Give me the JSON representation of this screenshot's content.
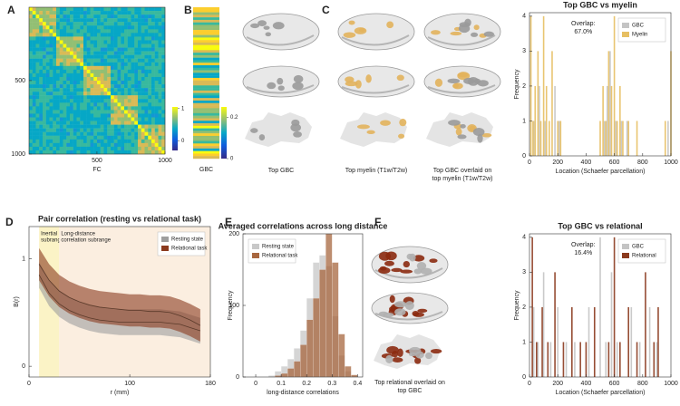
{
  "panel_labels": [
    "A",
    "B",
    "C",
    "D",
    "E",
    "F"
  ],
  "brains": {
    "labels": [
      [
        "Top GBC"
      ],
      [
        "Top myelin (T1w/T2w)"
      ],
      [
        "Top GBC overlaid on",
        "top myelin (T1w/T2w)"
      ],
      [
        "Top relational overlaid on",
        "top GBC"
      ]
    ]
  },
  "chart_data": [
    {
      "type": "heatmap",
      "xlabel": "FC",
      "xlim": [
        1,
        1000
      ],
      "ylim": [
        1,
        1000
      ],
      "xticks": [
        500,
        1000
      ],
      "yticks": [
        500,
        1000
      ],
      "colorbar_lim": [
        -0.3,
        1.05
      ],
      "colorbar_ticks": [
        0,
        1
      ]
    },
    {
      "type": "colorbar",
      "xlabel": "GBC",
      "colorbar_lim": [
        0,
        0.25
      ],
      "colorbar_ticks": [
        0,
        0.2
      ]
    },
    {
      "type": "bar",
      "title": "Top GBC vs myelin",
      "xlabel": "Location (Schaefer parcellation)",
      "ylabel": "Frequency",
      "xlim": [
        0,
        1000
      ],
      "ylim": [
        0,
        4.1
      ],
      "xticks": [
        0,
        200,
        400,
        600,
        800,
        1000
      ],
      "yticks": [
        0,
        1,
        2,
        3,
        4
      ],
      "legend": "upper right",
      "annotation_lines": [
        "Overlap:",
        "67.0%"
      ],
      "series": [
        {
          "name": "GBC",
          "color": "#c4c4c4",
          "x": [
            30,
            70,
            110,
            180,
            210,
            530,
            550,
            570,
            610,
            650,
            690,
            980
          ],
          "values": [
            1,
            2,
            1,
            2,
            1,
            1,
            2,
            3,
            1,
            1,
            1,
            1
          ]
        },
        {
          "name": "Myelin",
          "color": "#e7bf62",
          "x": [
            10,
            25,
            40,
            60,
            80,
            100,
            120,
            140,
            160,
            200,
            220,
            500,
            520,
            540,
            560,
            580,
            600,
            620,
            640,
            660,
            700,
            760,
            960,
            1000
          ],
          "values": [
            4,
            1,
            2,
            3,
            1,
            4,
            2,
            1,
            3,
            1,
            1,
            1,
            2,
            1,
            3,
            2,
            4,
            1,
            2,
            1,
            1,
            1,
            1,
            3
          ]
        }
      ]
    },
    {
      "type": "line",
      "title": "Pair correlation (resting vs relational task)",
      "xlabel": "r (mm)",
      "ylabel": "B(r)",
      "xlim": [
        0,
        180
      ],
      "ylim": [
        -0.1,
        1.3
      ],
      "xticks": [
        0,
        100,
        180
      ],
      "yticks": [
        0,
        1
      ],
      "legend": "upper right",
      "regions": [
        {
          "label_lines": [
            "Inertial",
            "subrange"
          ],
          "xlim": [
            10,
            30
          ],
          "color": "#fbf3c6"
        },
        {
          "label_lines": [
            "Long-distance",
            "correlation subrange"
          ],
          "xlim": [
            30,
            180
          ],
          "color": "#fbeee0"
        }
      ],
      "x": [
        10,
        20,
        30,
        40,
        50,
        60,
        70,
        80,
        90,
        100,
        110,
        120,
        130,
        140,
        150,
        160,
        170
      ],
      "series": [
        {
          "name": "Resting state",
          "color": "#9e9e9e",
          "values": [
            0.85,
            0.68,
            0.58,
            0.52,
            0.48,
            0.45,
            0.43,
            0.42,
            0.41,
            0.41,
            0.41,
            0.41,
            0.41,
            0.4,
            0.39,
            0.36,
            0.33
          ],
          "errors": [
            0.12,
            0.12,
            0.12,
            0.12,
            0.12,
            0.12,
            0.12,
            0.12,
            0.12,
            0.12,
            0.12,
            0.12,
            0.12,
            0.12,
            0.12,
            0.12,
            0.12
          ]
        },
        {
          "name": "Relational task",
          "color": "#8b3a1e",
          "values": [
            0.95,
            0.8,
            0.7,
            0.64,
            0.6,
            0.57,
            0.55,
            0.54,
            0.53,
            0.52,
            0.52,
            0.51,
            0.51,
            0.5,
            0.47,
            0.43,
            0.38
          ],
          "errors": [
            0.15,
            0.15,
            0.15,
            0.15,
            0.15,
            0.15,
            0.15,
            0.15,
            0.15,
            0.15,
            0.15,
            0.15,
            0.15,
            0.15,
            0.15,
            0.15,
            0.15
          ]
        }
      ]
    },
    {
      "type": "histogram",
      "title": "Averaged correlations across long distance",
      "xlabel": "long-distance correlations",
      "ylabel": "Frequency",
      "xlim": [
        -0.05,
        0.42
      ],
      "ylim": [
        0,
        200
      ],
      "xticks": [
        0,
        0.1,
        0.2,
        0.3,
        0.4
      ],
      "yticks": [
        0,
        100,
        200
      ],
      "legend": "upper left",
      "bins": [
        0,
        0.025,
        0.05,
        0.075,
        0.1,
        0.125,
        0.15,
        0.175,
        0.2,
        0.225,
        0.25,
        0.275,
        0.3,
        0.325,
        0.35,
        0.375,
        0.4
      ],
      "series": [
        {
          "name": "Resting state",
          "color": "#c8c8c8",
          "values": [
            0,
            0,
            2,
            8,
            15,
            25,
            40,
            65,
            110,
            160,
            170,
            155,
            85,
            30,
            8,
            2
          ]
        },
        {
          "name": "Relational task",
          "color": "#a8673f",
          "values": [
            0,
            0,
            0,
            2,
            5,
            12,
            22,
            45,
            80,
            110,
            150,
            200,
            160,
            60,
            15,
            3
          ]
        }
      ]
    },
    {
      "type": "bar",
      "title": "Top GBC vs relational",
      "xlabel": "Location (Schaefer parcellation)",
      "ylabel": "Frequency",
      "xlim": [
        0,
        1000
      ],
      "ylim": [
        0,
        4.1
      ],
      "xticks": [
        0,
        200,
        400,
        600,
        800,
        1000
      ],
      "yticks": [
        0,
        1,
        2,
        3,
        4
      ],
      "legend": "upper right",
      "annotation_lines": [
        "Overlap:",
        "16.4%"
      ],
      "series": [
        {
          "name": "GBC",
          "color": "#c4c4c4",
          "x": [
            30,
            60,
            100,
            150,
            200,
            260,
            320,
            420,
            500,
            540,
            580,
            620,
            720,
            780,
            850,
            900
          ],
          "values": [
            2,
            1,
            3,
            1,
            2,
            1,
            1,
            2,
            4,
            1,
            3,
            1,
            2,
            1,
            2,
            1
          ]
        },
        {
          "name": "Relational",
          "color": "#8b3a1e",
          "x": [
            20,
            50,
            90,
            130,
            180,
            240,
            300,
            360,
            400,
            460,
            560,
            600,
            640,
            700,
            760,
            820,
            880,
            910
          ],
          "values": [
            4,
            1,
            2,
            1,
            3,
            1,
            2,
            1,
            1,
            2,
            1,
            4,
            1,
            2,
            1,
            3,
            1,
            2
          ]
        }
      ]
    }
  ]
}
